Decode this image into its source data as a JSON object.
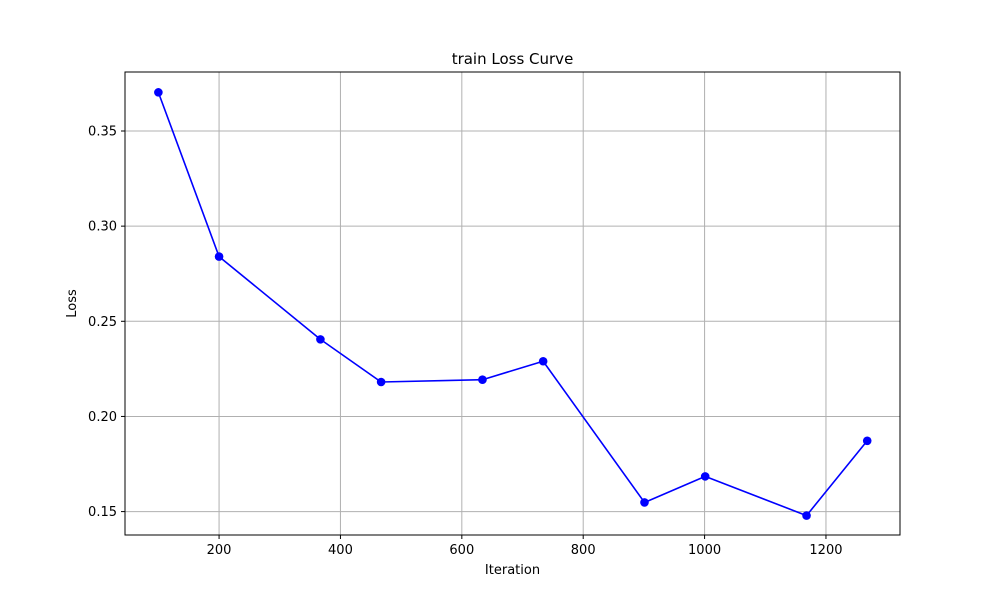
{
  "chart_data": {
    "type": "line",
    "title": "train Loss Curve",
    "xlabel": "Iteration",
    "ylabel": "Loss",
    "xlim": [
      45,
      1322
    ],
    "ylim": [
      0.1377,
      0.381
    ],
    "xticks": [
      200,
      400,
      600,
      800,
      1000,
      1200
    ],
    "xtick_labels": [
      "200",
      "400",
      "600",
      "800",
      "1000",
      "1200"
    ],
    "yticks": [
      0.15,
      0.2,
      0.25,
      0.3,
      0.35
    ],
    "ytick_labels": [
      "0.15",
      "0.20",
      "0.25",
      "0.30",
      "0.35"
    ],
    "grid": true,
    "series": [
      {
        "color": "#0000ff",
        "marker": "circle",
        "x": [
          100,
          200,
          367,
          467,
          634,
          734,
          901,
          1001,
          1168,
          1268
        ],
        "y": [
          0.3703,
          0.284,
          0.2405,
          0.2181,
          0.2193,
          0.229,
          0.1548,
          0.1685,
          0.1479,
          0.1872
        ]
      }
    ]
  }
}
